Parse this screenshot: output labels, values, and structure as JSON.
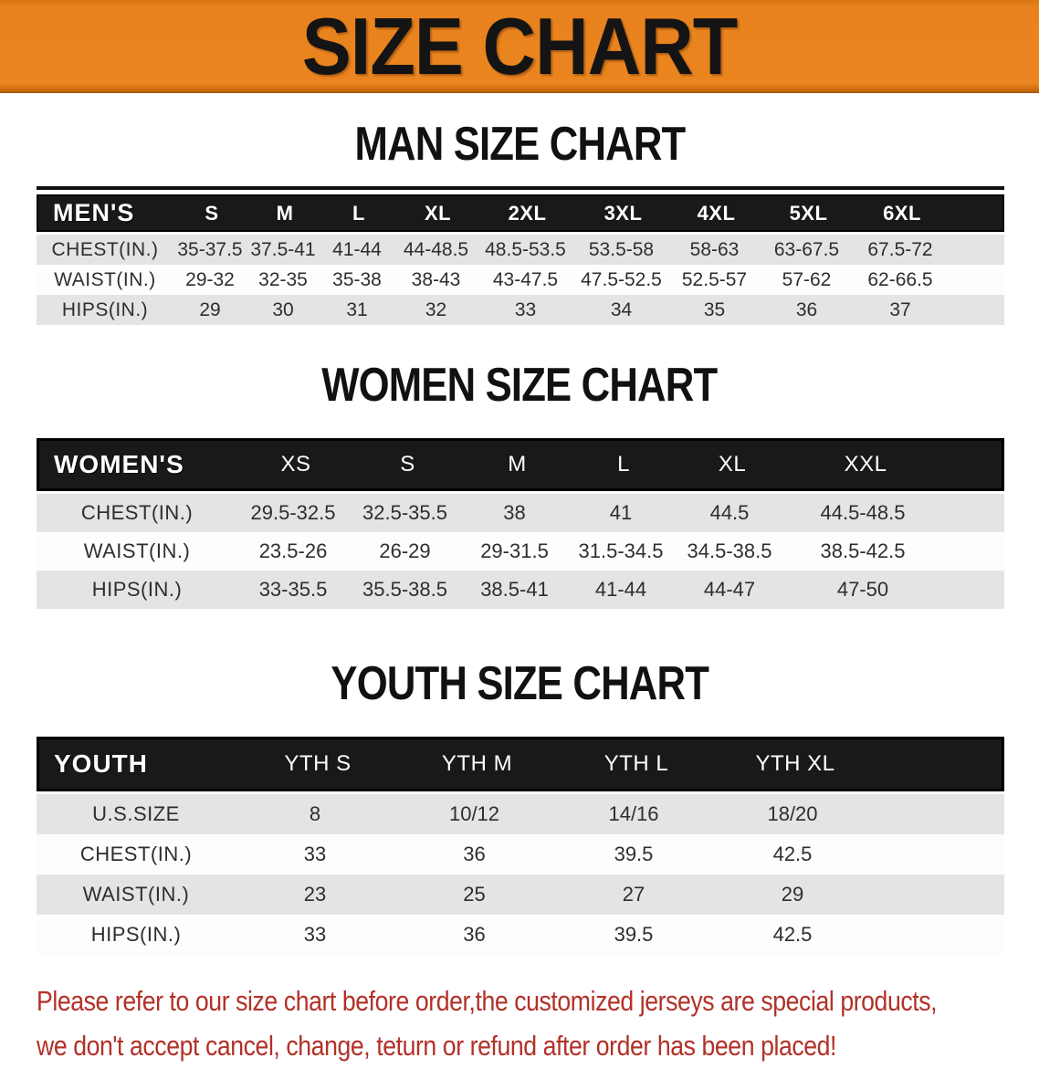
{
  "banner": {
    "title": "SIZE CHART"
  },
  "colors": {
    "banner_bg": "#E8821E",
    "table_header_bg": "#191919",
    "row_stripe": "#E4E4E6",
    "footer_text": "#B23128"
  },
  "sections": [
    {
      "heading": "MAN SIZE CHART",
      "table": {
        "corner": "MEN'S",
        "columns": [
          "S",
          "M",
          "L",
          "XL",
          "2XL",
          "3XL",
          "4XL",
          "5XL",
          "6XL"
        ],
        "rows": [
          {
            "label": "CHEST(IN.)",
            "values": [
              "35-37.5",
              "37.5-41",
              "41-44",
              "44-48.5",
              "48.5-53.5",
              "53.5-58",
              "58-63",
              "63-67.5",
              "67.5-72"
            ]
          },
          {
            "label": "WAIST(IN.)",
            "values": [
              "29-32",
              "32-35",
              "35-38",
              "38-43",
              "43-47.5",
              "47.5-52.5",
              "52.5-57",
              "57-62",
              "62-66.5"
            ]
          },
          {
            "label": "HIPS(IN.)",
            "values": [
              "29",
              "30",
              "31",
              "32",
              "33",
              "34",
              "35",
              "36",
              "37"
            ]
          }
        ]
      }
    },
    {
      "heading": "WOMEN SIZE CHART",
      "table": {
        "corner": "WOMEN'S",
        "columns": [
          "XS",
          "S",
          "M",
          "L",
          "XL",
          "XXL"
        ],
        "rows": [
          {
            "label": "CHEST(IN.)",
            "values": [
              "29.5-32.5",
              "32.5-35.5",
              "38",
              "41",
              "44.5",
              "44.5-48.5"
            ]
          },
          {
            "label": "WAIST(IN.)",
            "values": [
              "23.5-26",
              "26-29",
              "29-31.5",
              "31.5-34.5",
              "34.5-38.5",
              "38.5-42.5"
            ]
          },
          {
            "label": "HIPS(IN.)",
            "values": [
              "33-35.5",
              "35.5-38.5",
              "38.5-41",
              "41-44",
              "44-47",
              "47-50"
            ]
          }
        ]
      }
    },
    {
      "heading": "YOUTH SIZE CHART",
      "table": {
        "corner": "YOUTH",
        "columns": [
          "YTH S",
          "YTH M",
          "YTH L",
          "YTH XL"
        ],
        "rows": [
          {
            "label": "U.S.SIZE",
            "values": [
              "8",
              "10/12",
              "14/16",
              "18/20"
            ]
          },
          {
            "label": "CHEST(IN.)",
            "values": [
              "33",
              "36",
              "39.5",
              "42.5"
            ]
          },
          {
            "label": "WAIST(IN.)",
            "values": [
              "23",
              "25",
              "27",
              "29"
            ]
          },
          {
            "label": "HIPS(IN.)",
            "values": [
              "33",
              "36",
              "39.5",
              "42.5"
            ]
          }
        ]
      }
    }
  ],
  "footer": {
    "line1": "Please refer to our size chart before order,the customized jerseys are special products,",
    "line2": "we don't accept cancel, change, teturn or refund after order has been placed!"
  }
}
